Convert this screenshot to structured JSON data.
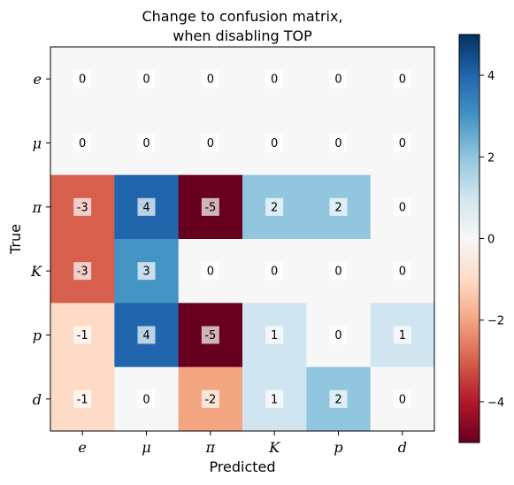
{
  "chart_data": {
    "type": "heatmap",
    "title": [
      "Change to confusion matrix,",
      "when disabling TOP"
    ],
    "xlabel": "Predicted",
    "ylabel": "True",
    "x_categories": [
      "e",
      "μ",
      "π",
      "K",
      "p",
      "d"
    ],
    "y_categories": [
      "e",
      "μ",
      "π",
      "K",
      "p",
      "d"
    ],
    "values": [
      [
        0,
        0,
        0,
        0,
        0,
        0
      ],
      [
        0,
        0,
        0,
        0,
        0,
        0
      ],
      [
        -3,
        4,
        -5,
        2,
        2,
        0
      ],
      [
        -3,
        3,
        0,
        0,
        0,
        0
      ],
      [
        -1,
        4,
        -5,
        1,
        0,
        1
      ],
      [
        -1,
        0,
        -2,
        1,
        2,
        0
      ]
    ],
    "colormap": "RdBu",
    "vmin": -5,
    "vmax": 5,
    "colorbar_ticks": [
      4,
      2,
      0,
      -2,
      -4
    ],
    "colorbar_tick_labels": [
      "4",
      "2",
      "0",
      "−2",
      "−4"
    ],
    "grid": false
  }
}
